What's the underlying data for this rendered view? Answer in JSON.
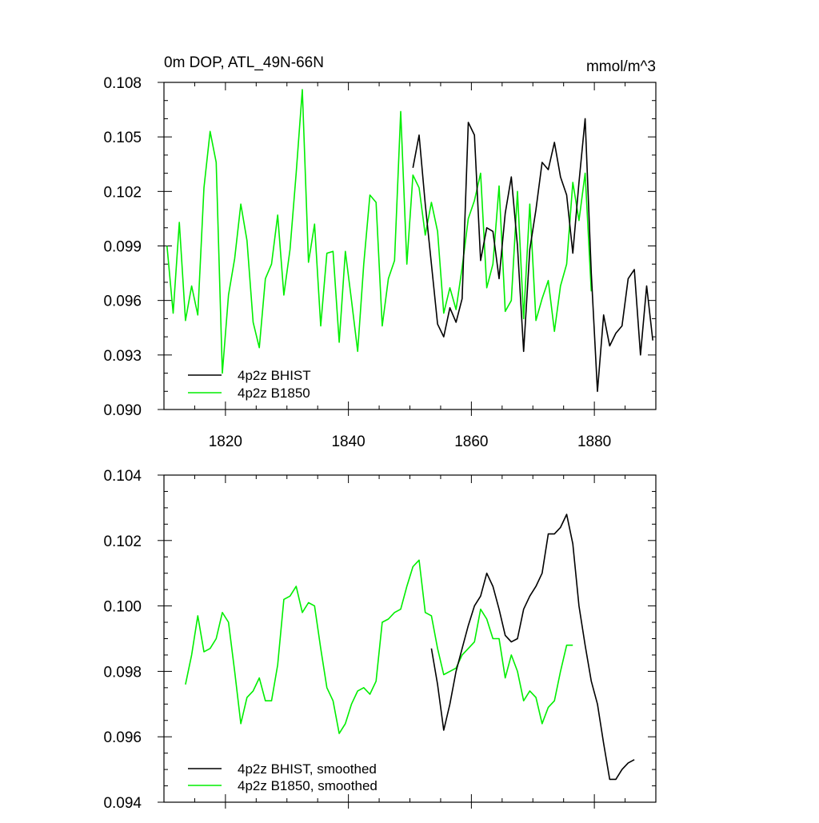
{
  "chart_data": [
    {
      "type": "line",
      "title": "0m DOP, ATL_49N-66N",
      "units": "mmol/m^3",
      "xlabel": "",
      "ylabel": "",
      "xlim": [
        1810,
        1890
      ],
      "ylim": [
        0.09,
        0.108
      ],
      "xticks": [
        "1820",
        "1840",
        "1860",
        "1880"
      ],
      "yticks": [
        "0.090",
        "0.093",
        "0.096",
        "0.099",
        "0.102",
        "0.105",
        "0.108"
      ],
      "legend_position": "bottom-left",
      "colors": {
        "4p2z BHIST": "#000000",
        "4p2z B1850": "#00ee00"
      },
      "series": [
        {
          "name": "4p2z BHIST",
          "x": [
            1850.5,
            1851.5,
            1852.5,
            1853.5,
            1854.5,
            1855.5,
            1856.5,
            1857.5,
            1858.5,
            1859.5,
            1860.5,
            1861.5,
            1862.5,
            1863.5,
            1864.5,
            1865.5,
            1866.5,
            1867.5,
            1868.5,
            1869.5,
            1870.5,
            1871.5,
            1872.5,
            1873.5,
            1874.5,
            1875.5,
            1876.5,
            1877.5,
            1878.5,
            1879.5,
            1880.5,
            1881.5,
            1882.5,
            1883.5,
            1884.5,
            1885.5,
            1886.5,
            1887.5,
            1888.5,
            1889.5
          ],
          "y": [
            0.1033,
            0.1051,
            0.1013,
            0.098,
            0.0947,
            0.094,
            0.0956,
            0.0948,
            0.0961,
            0.1058,
            0.1051,
            0.0982,
            0.1,
            0.0998,
            0.0972,
            0.1008,
            0.1028,
            0.099,
            0.0932,
            0.0988,
            0.101,
            0.1036,
            0.1032,
            0.1047,
            0.1028,
            0.1018,
            0.0986,
            0.1025,
            0.106,
            0.0975,
            0.091,
            0.0952,
            0.0935,
            0.0942,
            0.0946,
            0.0972,
            0.0977,
            0.093,
            0.0968,
            0.0938
          ]
        },
        {
          "name": "4p2z B1850",
          "x": [
            1810.5,
            1811.5,
            1812.5,
            1813.5,
            1814.5,
            1815.5,
            1816.5,
            1817.5,
            1818.5,
            1819.5,
            1820.5,
            1821.5,
            1822.5,
            1823.5,
            1824.5,
            1825.5,
            1826.5,
            1827.5,
            1828.5,
            1829.5,
            1830.5,
            1831.5,
            1832.5,
            1833.5,
            1834.5,
            1835.5,
            1836.5,
            1837.5,
            1838.5,
            1839.5,
            1840.5,
            1841.5,
            1842.5,
            1843.5,
            1844.5,
            1845.5,
            1846.5,
            1847.5,
            1848.5,
            1849.5,
            1850.5,
            1851.5,
            1852.5,
            1853.5,
            1854.5,
            1855.5,
            1856.5,
            1857.5,
            1858.5,
            1859.5,
            1860.5,
            1861.5,
            1862.5,
            1863.5,
            1864.5,
            1865.5,
            1866.5,
            1867.5,
            1868.5,
            1869.5,
            1870.5,
            1871.5,
            1872.5,
            1873.5,
            1874.5,
            1875.5,
            1876.5,
            1877.5,
            1878.5,
            1879.5
          ],
          "y": [
            0.099,
            0.0953,
            0.1003,
            0.0949,
            0.0968,
            0.0952,
            0.1022,
            0.1053,
            0.1036,
            0.092,
            0.0963,
            0.0983,
            0.1013,
            0.0993,
            0.0948,
            0.0934,
            0.0972,
            0.098,
            0.1007,
            0.0963,
            0.0988,
            0.103,
            0.1076,
            0.0981,
            0.1002,
            0.0946,
            0.0986,
            0.0987,
            0.0937,
            0.0987,
            0.096,
            0.0932,
            0.098,
            0.1018,
            0.1014,
            0.0946,
            0.0972,
            0.0982,
            0.1064,
            0.098,
            0.1029,
            0.1022,
            0.0996,
            0.1014,
            0.0998,
            0.0953,
            0.0967,
            0.0955,
            0.0978,
            0.1005,
            0.1015,
            0.103,
            0.0967,
            0.098,
            0.1023,
            0.0954,
            0.096,
            0.102,
            0.095,
            0.1013,
            0.0949,
            0.0961,
            0.0971,
            0.0943,
            0.0968,
            0.098,
            0.1025,
            0.1004,
            0.103,
            0.0965
          ]
        }
      ]
    },
    {
      "type": "line",
      "title": "",
      "units": "",
      "xlabel": "",
      "ylabel": "",
      "xlim": [
        1810,
        1890
      ],
      "ylim": [
        0.094,
        0.104
      ],
      "xticks": [],
      "yticks": [
        "0.094",
        "0.096",
        "0.098",
        "0.100",
        "0.102",
        "0.104"
      ],
      "legend_position": "bottom-left",
      "colors": {
        "4p2z BHIST, smoothed": "#000000",
        "4p2z B1850, smoothed": "#00ee00"
      },
      "series": [
        {
          "name": "4p2z BHIST, smoothed",
          "x": [
            1853.5,
            1854.5,
            1855.5,
            1856.5,
            1857.5,
            1858.5,
            1859.5,
            1860.5,
            1861.5,
            1862.5,
            1863.5,
            1864.5,
            1865.5,
            1866.5,
            1867.5,
            1868.5,
            1869.5,
            1870.5,
            1871.5,
            1872.5,
            1873.5,
            1874.5,
            1875.5,
            1876.5,
            1877.5,
            1878.5,
            1879.5,
            1880.5,
            1881.5,
            1882.5,
            1883.5,
            1884.5,
            1885.5,
            1886.5
          ],
          "y": [
            0.0987,
            0.0976,
            0.0962,
            0.097,
            0.098,
            0.0987,
            0.0994,
            0.1,
            0.1003,
            0.101,
            0.1006,
            0.0999,
            0.0991,
            0.0989,
            0.099,
            0.0999,
            0.1003,
            0.1006,
            0.101,
            0.1022,
            0.1022,
            0.1024,
            0.1028,
            0.1019,
            0.1,
            0.0988,
            0.0977,
            0.097,
            0.0958,
            0.0947,
            0.0947,
            0.095,
            0.0952,
            0.0953
          ]
        },
        {
          "name": "4p2z B1850, smoothed",
          "x": [
            1813.5,
            1814.5,
            1815.5,
            1816.5,
            1817.5,
            1818.5,
            1819.5,
            1820.5,
            1821.5,
            1822.5,
            1823.5,
            1824.5,
            1825.5,
            1826.5,
            1827.5,
            1828.5,
            1829.5,
            1830.5,
            1831.5,
            1832.5,
            1833.5,
            1834.5,
            1835.5,
            1836.5,
            1837.5,
            1838.5,
            1839.5,
            1840.5,
            1841.5,
            1842.5,
            1843.5,
            1844.5,
            1845.5,
            1846.5,
            1847.5,
            1848.5,
            1849.5,
            1850.5,
            1851.5,
            1852.5,
            1853.5,
            1854.5,
            1855.5,
            1856.5,
            1857.5,
            1858.5,
            1859.5,
            1860.5,
            1861.5,
            1862.5,
            1863.5,
            1864.5,
            1865.5,
            1866.5,
            1867.5,
            1868.5,
            1869.5,
            1870.5,
            1871.5,
            1872.5,
            1873.5,
            1874.5,
            1875.5,
            1876.5
          ],
          "y": [
            0.0976,
            0.0985,
            0.0997,
            0.0986,
            0.0987,
            0.099,
            0.0998,
            0.0995,
            0.098,
            0.0964,
            0.0972,
            0.0974,
            0.0978,
            0.0971,
            0.0971,
            0.0982,
            0.1002,
            0.1003,
            0.1006,
            0.0998,
            0.1001,
            0.1,
            0.0987,
            0.0975,
            0.0971,
            0.0961,
            0.0964,
            0.097,
            0.0974,
            0.0975,
            0.0973,
            0.0977,
            0.0995,
            0.0996,
            0.0998,
            0.0999,
            0.1006,
            0.1012,
            0.1014,
            0.0998,
            0.0997,
            0.0987,
            0.0979,
            0.098,
            0.0981,
            0.0985,
            0.0987,
            0.0989,
            0.0999,
            0.0996,
            0.099,
            0.099,
            0.0978,
            0.0985,
            0.098,
            0.0971,
            0.0974,
            0.0972,
            0.0964,
            0.0969,
            0.0971,
            0.098,
            0.0988,
            0.0988
          ]
        }
      ]
    }
  ]
}
